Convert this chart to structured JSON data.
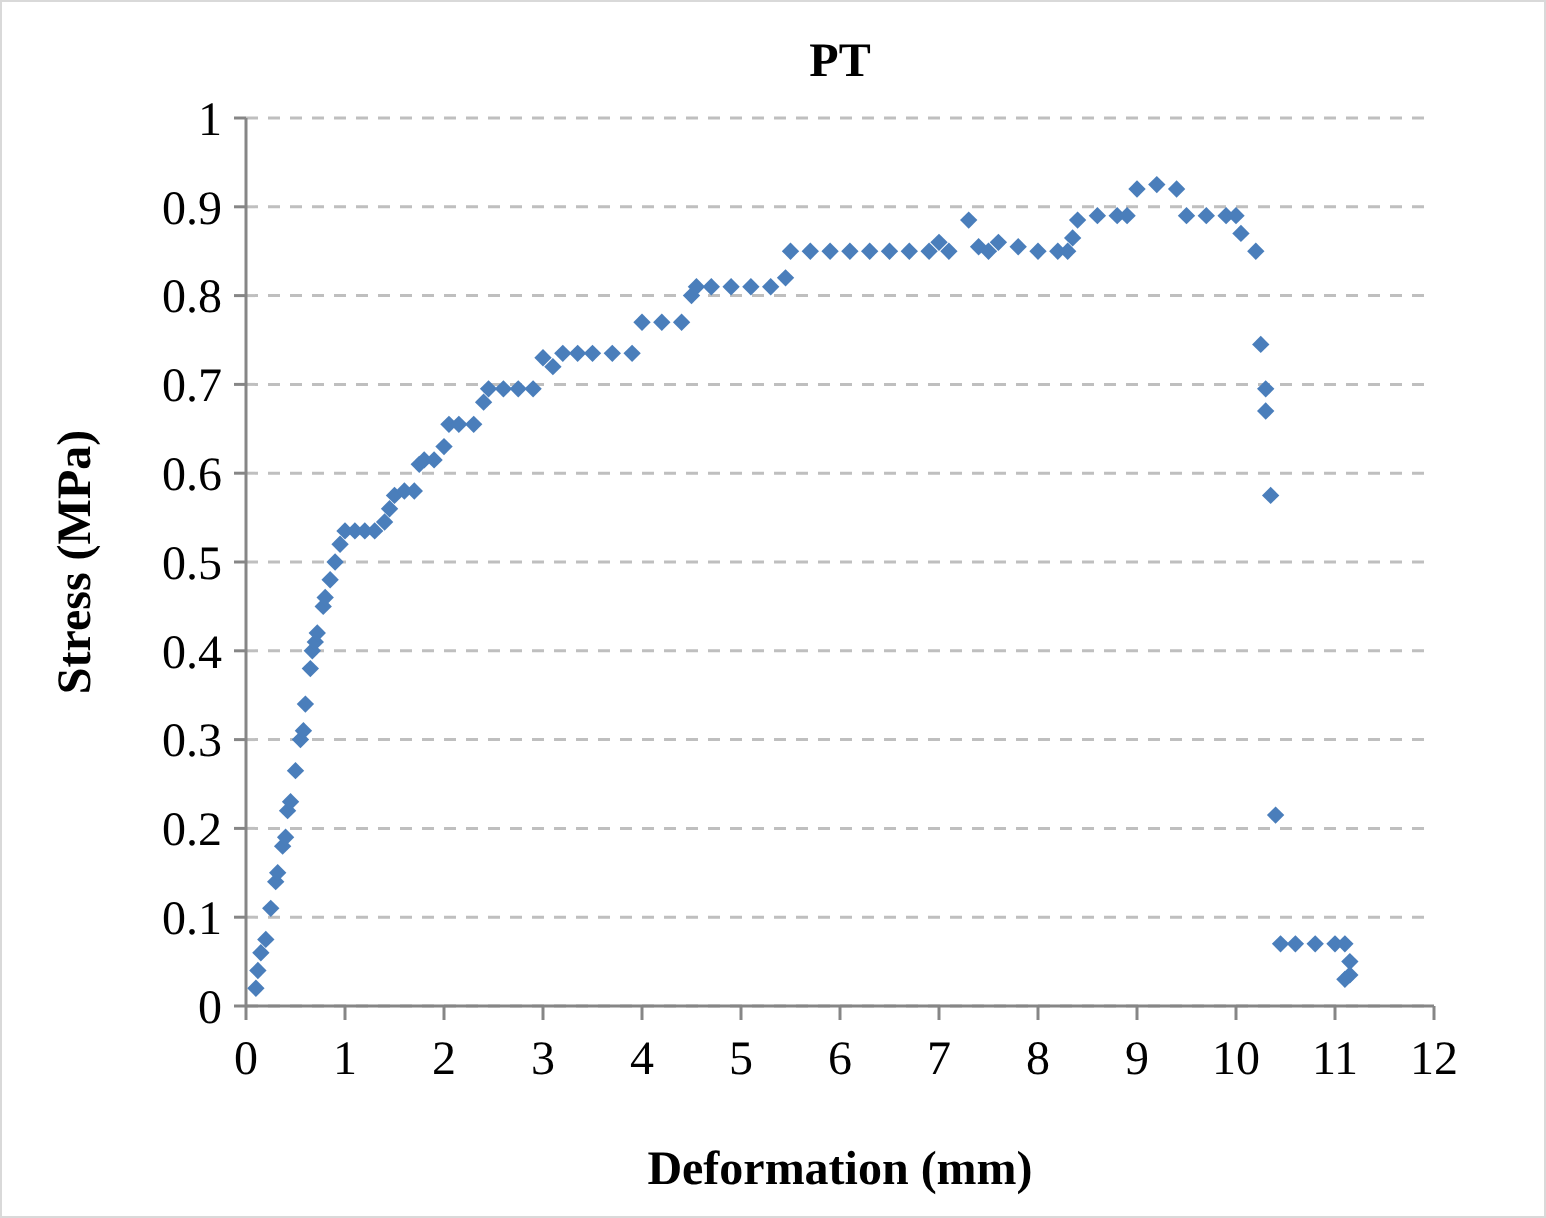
{
  "chart_data": {
    "type": "scatter",
    "title": "PT",
    "xlabel": "Deformation (mm)",
    "ylabel": "Stress (MPa)",
    "xlim": [
      0,
      12
    ],
    "xticks": [
      0,
      1,
      2,
      3,
      4,
      5,
      6,
      7,
      8,
      9,
      10,
      11,
      12
    ],
    "ylim": [
      0,
      1
    ],
    "yticks": [
      0,
      0.1,
      0.2,
      0.3,
      0.4,
      0.5,
      0.6,
      0.7,
      0.8,
      0.9,
      1
    ],
    "grid": "y",
    "marker": "diamond",
    "series": [
      {
        "color": "#4a7ebb",
        "x": [
          0.1,
          0.12,
          0.15,
          0.2,
          0.25,
          0.3,
          0.32,
          0.37,
          0.4,
          0.42,
          0.45,
          0.5,
          0.55,
          0.58,
          0.6,
          0.65,
          0.67,
          0.7,
          0.72,
          0.78,
          0.8,
          0.85,
          0.9,
          0.95,
          1.0,
          1.1,
          1.2,
          1.3,
          1.4,
          1.45,
          1.5,
          1.6,
          1.7,
          1.75,
          1.8,
          1.9,
          2.0,
          2.05,
          2.15,
          2.3,
          2.4,
          2.45,
          2.6,
          2.75,
          2.9,
          3.0,
          3.1,
          3.2,
          3.35,
          3.5,
          3.7,
          3.9,
          4.0,
          4.2,
          4.4,
          4.5,
          4.55,
          4.7,
          4.9,
          5.1,
          5.3,
          5.45,
          5.5,
          5.7,
          5.9,
          6.1,
          6.3,
          6.5,
          6.7,
          6.9,
          7.0,
          7.1,
          7.3,
          7.4,
          7.5,
          7.6,
          7.8,
          8.0,
          8.2,
          8.3,
          8.35,
          8.4,
          8.6,
          8.8,
          8.9,
          9.0,
          9.2,
          9.4,
          9.5,
          9.7,
          9.9,
          10.0,
          10.05,
          10.2,
          10.25,
          10.3,
          10.3,
          10.35,
          10.4,
          10.45,
          10.6,
          10.8,
          11.0,
          11.1,
          11.15,
          11.15,
          11.1
        ],
        "values": [
          0.02,
          0.04,
          0.06,
          0.075,
          0.11,
          0.14,
          0.15,
          0.18,
          0.19,
          0.22,
          0.23,
          0.265,
          0.3,
          0.31,
          0.34,
          0.38,
          0.4,
          0.41,
          0.42,
          0.45,
          0.46,
          0.48,
          0.5,
          0.52,
          0.535,
          0.535,
          0.535,
          0.535,
          0.545,
          0.56,
          0.575,
          0.58,
          0.58,
          0.61,
          0.615,
          0.615,
          0.63,
          0.655,
          0.655,
          0.655,
          0.68,
          0.695,
          0.695,
          0.695,
          0.695,
          0.73,
          0.72,
          0.735,
          0.735,
          0.735,
          0.735,
          0.735,
          0.77,
          0.77,
          0.77,
          0.8,
          0.81,
          0.81,
          0.81,
          0.81,
          0.81,
          0.82,
          0.85,
          0.85,
          0.85,
          0.85,
          0.85,
          0.85,
          0.85,
          0.85,
          0.86,
          0.85,
          0.885,
          0.855,
          0.85,
          0.86,
          0.855,
          0.85,
          0.85,
          0.85,
          0.865,
          0.885,
          0.89,
          0.89,
          0.89,
          0.92,
          0.925,
          0.92,
          0.89,
          0.89,
          0.89,
          0.89,
          0.87,
          0.85,
          0.745,
          0.695,
          0.67,
          0.575,
          0.215,
          0.07,
          0.07,
          0.07,
          0.07,
          0.07,
          0.05,
          0.035,
          0.03
        ]
      }
    ]
  }
}
